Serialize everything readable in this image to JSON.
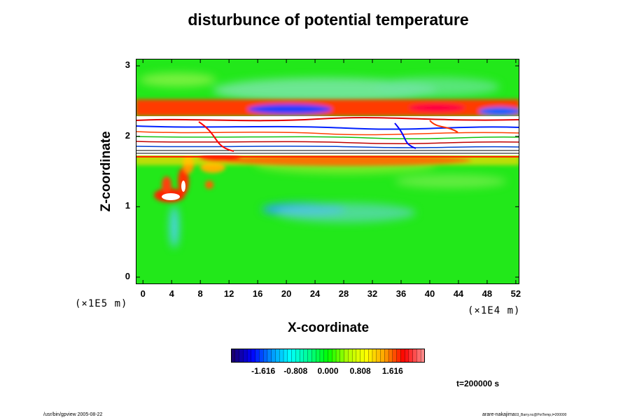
{
  "chart_data": {
    "type": "heatmap",
    "title": "disturbunce of potential temperature",
    "xlabel": "X-coordinate",
    "ylabel": "Z-coordinate",
    "x_unit": "(×1E4 m)",
    "y_unit": "(×1E5 m)",
    "x_ticks": [
      "0",
      "4",
      "8",
      "12",
      "16",
      "20",
      "24",
      "28",
      "32",
      "36",
      "40",
      "44",
      "48",
      "52"
    ],
    "y_ticks": [
      "0",
      "1",
      "2",
      "3"
    ],
    "xlim": [
      -1,
      52.5
    ],
    "ylim": [
      -0.1,
      3.1
    ],
    "colorbar": {
      "range": [
        -2.424,
        2.424
      ],
      "ticks": [
        "-1.616",
        "-0.808",
        "0.000",
        "0.808",
        "1.616"
      ],
      "colors": [
        "#1a0070",
        "#0000ff",
        "#0090ff",
        "#00ffff",
        "#00ff90",
        "#00ff00",
        "#b0ff00",
        "#ffff00",
        "#ffa000",
        "#ff0000",
        "#ff8888"
      ]
    },
    "background_value": 0.0,
    "features": [
      {
        "description": "strong multi-sign disturbance layer",
        "x_range": [
          0,
          52
        ],
        "z_range": [
          1.7,
          2.45
        ]
      },
      {
        "description": "positive plume",
        "x_range": [
          2.5,
          6
        ],
        "z_range": [
          1.05,
          1.6
        ]
      },
      {
        "description": "weak negative anomaly",
        "x_range": [
          16,
          28
        ],
        "z_range": [
          0.85,
          1.0
        ]
      }
    ],
    "annotation": "t=200000 s"
  },
  "footer": {
    "left": "/usr/bin/gpview 2005-08-22",
    "right_main": "arare-nakajima",
    "right_small": "03_Barry.nc@PotTemp,t=200000"
  }
}
